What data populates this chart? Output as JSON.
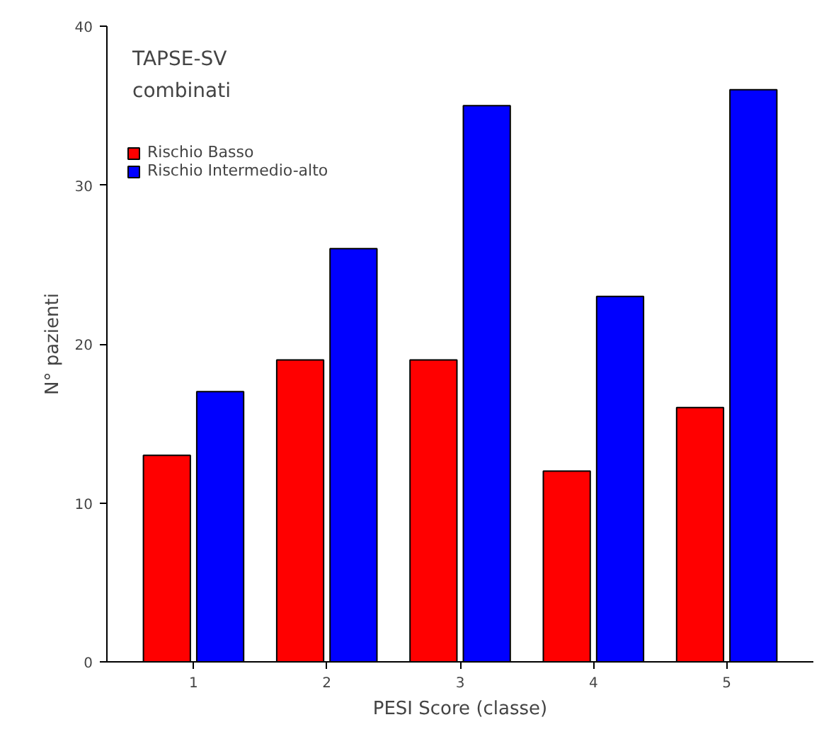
{
  "chart_data": {
    "type": "bar",
    "title": "TAPSE-SV\ncombinati",
    "xlabel": "PESI Score (classe)",
    "ylabel": "N° pazienti",
    "categories": [
      "1",
      "2",
      "3",
      "4",
      "5"
    ],
    "series": [
      {
        "name": "Rischio Basso",
        "color": "#ff0000",
        "values": [
          13,
          19,
          19,
          12,
          16
        ]
      },
      {
        "name": "Rischio Intermedio-alto",
        "color": "#0000ff",
        "values": [
          17,
          26,
          35,
          23,
          36
        ]
      }
    ],
    "ylim": [
      0,
      40
    ],
    "yticks": [
      0,
      10,
      20,
      30,
      40
    ],
    "grid": false,
    "legend": "top left"
  }
}
